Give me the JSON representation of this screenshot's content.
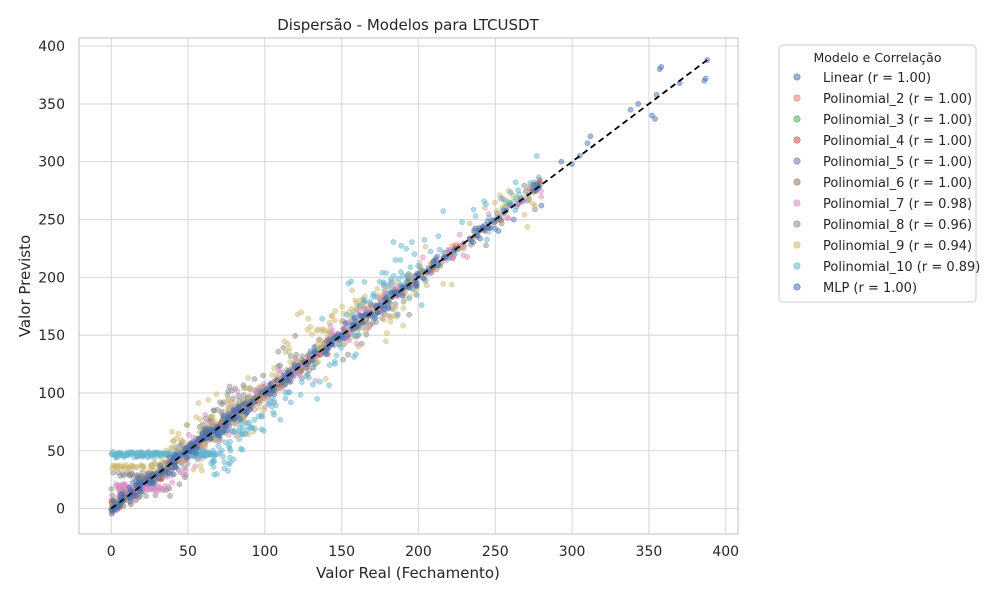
{
  "chart_data": {
    "type": "scatter",
    "title": "Dispersão - Modelos para LTCUSDT",
    "xlabel": "Valor Real (Fechamento)",
    "ylabel": "Valor Previsto",
    "xlim": [
      -21,
      408
    ],
    "ylim": [
      -22,
      407
    ],
    "xticks": [
      0,
      50,
      100,
      150,
      200,
      250,
      300,
      350,
      400
    ],
    "yticks": [
      0,
      50,
      100,
      150,
      200,
      250,
      300,
      350,
      400
    ],
    "grid": true,
    "legend": {
      "title": "Modelo e Correlação",
      "placement": "outside-top-right"
    },
    "reference_line": {
      "style": "dashed",
      "color": "#000000",
      "from": [
        0,
        0
      ],
      "to": [
        388,
        388
      ]
    },
    "series": [
      {
        "name": "Linear (r = 1.00)",
        "color": "#4c72b0",
        "r": 1.0
      },
      {
        "name": "Polinomial_2 (r = 1.00)",
        "color": "#dd8452",
        "r": 1.0
      },
      {
        "name": "Polinomial_3 (r = 1.00)",
        "color": "#55a868",
        "r": 1.0
      },
      {
        "name": "Polinomial_4 (r = 1.00)",
        "color": "#c44e52",
        "r": 1.0
      },
      {
        "name": "Polinomial_5 (r = 1.00)",
        "color": "#8172b3",
        "r": 1.0
      },
      {
        "name": "Polinomial_6 (r = 1.00)",
        "color": "#937860",
        "r": 1.0
      },
      {
        "name": "Polinomial_7 (r = 0.98)",
        "color": "#da8bc3",
        "r": 0.98
      },
      {
        "name": "Polinomial_8 (r = 0.96)",
        "color": "#8c8c8c",
        "r": 0.96
      },
      {
        "name": "Polinomial_9 (r = 0.94)",
        "color": "#ccb974",
        "r": 0.94
      },
      {
        "name": "Polinomial_10 (r = 0.89)",
        "color": "#64b5cd",
        "r": 0.89
      },
      {
        "name": "MLP (r = 1.00)",
        "color": "#4c72b0",
        "r": 1.0
      }
    ],
    "high_value_points": [
      [
        388,
        388
      ],
      [
        387,
        372
      ],
      [
        386,
        370
      ],
      [
        370,
        368
      ],
      [
        358,
        382
      ],
      [
        357,
        380
      ],
      [
        355,
        358
      ],
      [
        354,
        337
      ],
      [
        352,
        340
      ],
      [
        343,
        350
      ],
      [
        338,
        345
      ],
      [
        312,
        322
      ],
      [
        310,
        316
      ],
      [
        305,
        305
      ],
      [
        300,
        298
      ],
      [
        293,
        300
      ],
      [
        280,
        262
      ],
      [
        278,
        277
      ],
      [
        275,
        280
      ],
      [
        268,
        266
      ],
      [
        262,
        250
      ],
      [
        255,
        258
      ],
      [
        252,
        240
      ],
      [
        245,
        248
      ]
    ]
  }
}
